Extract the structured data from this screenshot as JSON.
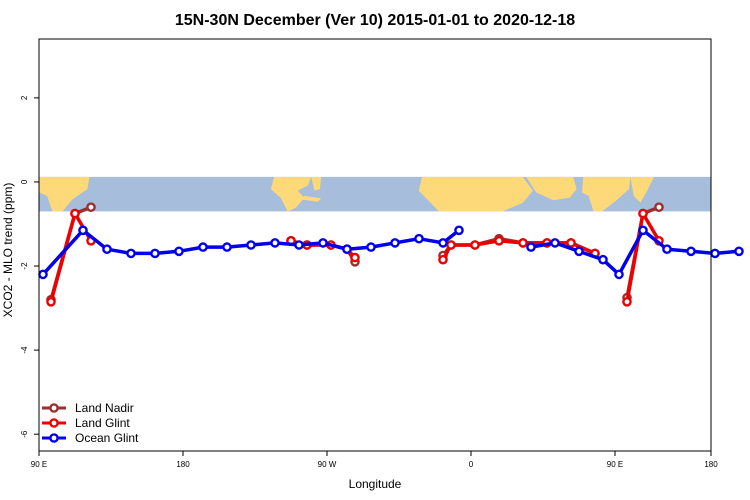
{
  "chart_data": {
    "type": "line",
    "title": "15N-30N December (Ver 10)   2015-01-01 to 2020-12-18",
    "xlabel": "Longitude",
    "ylabel": "XCO2 - MLO trend (ppm)",
    "xlim": [
      0,
      420
    ],
    "ylim": [
      -6.4,
      3.4
    ],
    "x_ticks": [
      {
        "value": 0,
        "label": "90 E"
      },
      {
        "value": 90,
        "label": "180"
      },
      {
        "value": 180,
        "label": "90 W"
      },
      {
        "value": 270,
        "label": "0"
      },
      {
        "value": 360,
        "label": "90 E"
      },
      {
        "value": 450,
        "label": "180"
      }
    ],
    "y_ticks": [
      {
        "value": 2,
        "label": "2"
      },
      {
        "value": 0,
        "label": "0"
      },
      {
        "value": -2,
        "label": "-2"
      },
      {
        "value": -4,
        "label": "-4"
      },
      {
        "value": -6,
        "label": "-6"
      }
    ],
    "grid": false,
    "legend_position": "bottom-left",
    "map_band": {
      "ymin": -0.7,
      "ymax": 0.12,
      "ocean_color": "#a7bddc",
      "land_color": "#fdd97a"
    },
    "series": [
      {
        "name": "Land Nadir",
        "color": "#9b2f2f",
        "segments": [
          [
            [
              7.5,
              -2.8
            ],
            [
              22.5,
              -0.75
            ],
            [
              32.5,
              -0.6
            ]
          ],
          [
            [
              157.5,
              -1.4
            ],
            [
              167.5,
              -1.5
            ],
            [
              182.5,
              -1.5
            ],
            [
              192.5,
              -1.6
            ],
            [
              197.5,
              -1.9
            ]
          ],
          [
            [
              252.5,
              -1.75
            ],
            [
              257.5,
              -1.5
            ],
            [
              272.5,
              -1.5
            ],
            [
              287.5,
              -1.35
            ],
            [
              302.5,
              -1.45
            ],
            [
              317.5,
              -1.45
            ],
            [
              332.5,
              -1.45
            ],
            [
              347.5,
              -1.7
            ]
          ],
          [
            [
              367.5,
              -2.75
            ],
            [
              377.5,
              -0.75
            ],
            [
              387.5,
              -0.6
            ]
          ]
        ]
      },
      {
        "name": "Land Glint",
        "color": "#ee0000",
        "segments": [
          [
            [
              7.5,
              -2.85
            ],
            [
              22.5,
              -0.75
            ],
            [
              32.5,
              -1.4
            ]
          ],
          [
            [
              157.5,
              -1.4
            ],
            [
              167.5,
              -1.5
            ],
            [
              182.5,
              -1.5
            ],
            [
              192.5,
              -1.6
            ],
            [
              197.5,
              -1.8
            ]
          ],
          [
            [
              252.5,
              -1.85
            ],
            [
              257.5,
              -1.5
            ],
            [
              272.5,
              -1.5
            ],
            [
              287.5,
              -1.4
            ],
            [
              302.5,
              -1.45
            ],
            [
              317.5,
              -1.45
            ],
            [
              332.5,
              -1.45
            ],
            [
              347.5,
              -1.7
            ]
          ],
          [
            [
              367.5,
              -2.85
            ],
            [
              377.5,
              -0.75
            ],
            [
              387.5,
              -1.4
            ]
          ]
        ]
      },
      {
        "name": "Ocean Glint",
        "color": "#0000ee",
        "segments": [
          [
            [
              2.5,
              -2.2
            ],
            [
              27.5,
              -1.15
            ],
            [
              42.5,
              -1.6
            ],
            [
              57.5,
              -1.7
            ],
            [
              72.5,
              -1.7
            ],
            [
              87.5,
              -1.65
            ],
            [
              102.5,
              -1.55
            ],
            [
              117.5,
              -1.55
            ],
            [
              132.5,
              -1.5
            ],
            [
              147.5,
              -1.45
            ],
            [
              162.5,
              -1.5
            ],
            [
              177.5,
              -1.45
            ],
            [
              192.5,
              -1.6
            ],
            [
              207.5,
              -1.55
            ],
            [
              222.5,
              -1.45
            ],
            [
              237.5,
              -1.35
            ],
            [
              252.5,
              -1.45
            ],
            [
              262.5,
              -1.15
            ]
          ],
          [
            [
              307.5,
              -1.55
            ],
            [
              322.5,
              -1.45
            ],
            [
              337.5,
              -1.65
            ],
            [
              352.5,
              -1.85
            ],
            [
              362.5,
              -2.2
            ],
            [
              377.5,
              -1.15
            ],
            [
              392.5,
              -1.6
            ],
            [
              407.5,
              -1.65
            ],
            [
              422.5,
              -1.7
            ],
            [
              437.5,
              -1.65
            ]
          ]
        ]
      }
    ]
  }
}
